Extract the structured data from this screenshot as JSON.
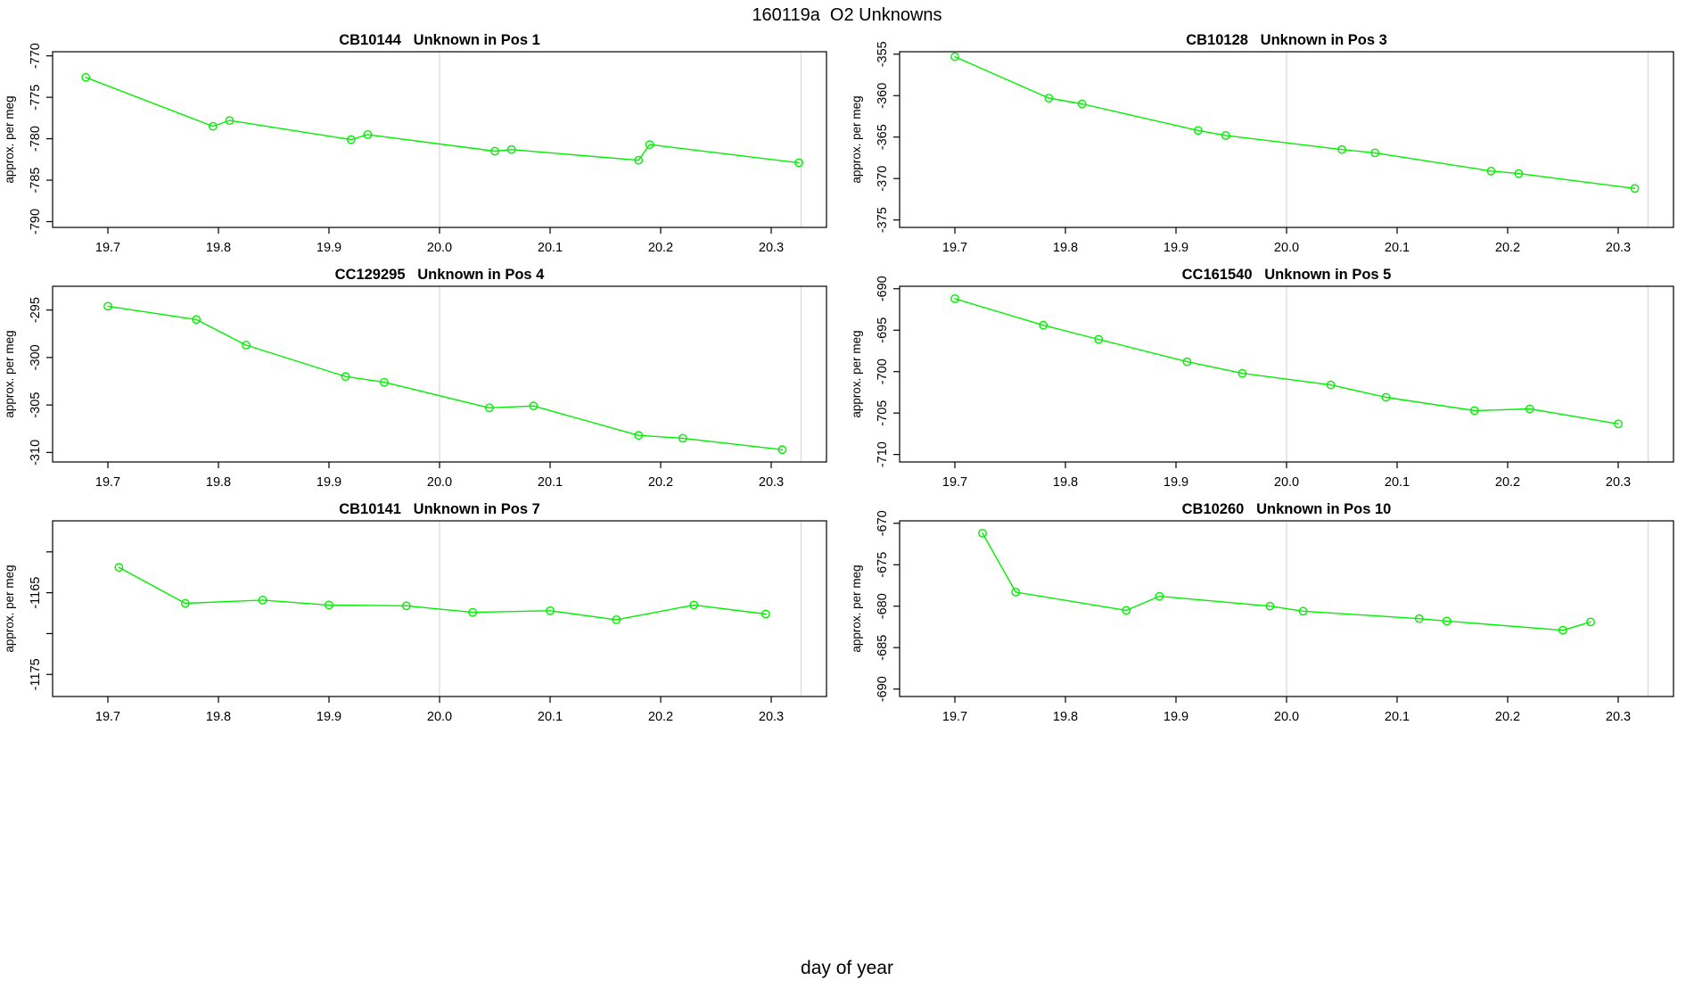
{
  "figure": {
    "title": "160119a  O2 Unknowns",
    "bottom_axis_label": "day of year"
  },
  "colors": {
    "series": "#00f000",
    "gridline": "#d8d8d8",
    "axis": "#000000",
    "background": "#ffffff"
  },
  "chart_data": [
    {
      "id": "cb10144-pos1",
      "type": "line",
      "title": "CB10144   Unknown in Pos 1",
      "ylabel": "approx. per meg",
      "xlabel": "day of year",
      "x": [
        19.68,
        19.795,
        19.81,
        19.92,
        19.935,
        20.05,
        20.065,
        20.18,
        20.19,
        20.325
      ],
      "y": [
        -772.6,
        -778.5,
        -777.8,
        -780.1,
        -779.5,
        -781.5,
        -781.3,
        -782.6,
        -780.7,
        -782.9
      ],
      "xlim": [
        19.65,
        20.35
      ],
      "ylim": [
        -790.7,
        -769.5
      ],
      "xticks": [
        19.7,
        19.8,
        19.9,
        20.0,
        20.1,
        20.2,
        20.3
      ],
      "xtick_labels": [
        "19.7",
        "19.8",
        "19.9",
        "20.0",
        "20.1",
        "20.2",
        "20.3"
      ],
      "yticks": [
        -790,
        -785,
        -780,
        -775,
        -770
      ],
      "ytick_labels": [
        "-790",
        "-785",
        "-780",
        "-775",
        "-770"
      ],
      "vlines": [
        20.0,
        20.327
      ],
      "grid_row": 0,
      "grid_col": 0
    },
    {
      "id": "cb10128-pos3",
      "type": "line",
      "title": "CB10128   Unknown in Pos 3",
      "ylabel": "approx. per meg",
      "xlabel": "day of year",
      "x": [
        19.7,
        19.785,
        19.815,
        19.92,
        19.945,
        20.05,
        20.08,
        20.185,
        20.21,
        20.315
      ],
      "y": [
        -355.3,
        -360.3,
        -361.0,
        -364.2,
        -364.8,
        -366.5,
        -366.9,
        -369.1,
        -369.4,
        -371.2
      ],
      "xlim": [
        19.65,
        20.35
      ],
      "ylim": [
        -375.9,
        -354.7
      ],
      "xticks": [
        19.7,
        19.8,
        19.9,
        20.0,
        20.1,
        20.2,
        20.3
      ],
      "xtick_labels": [
        "19.7",
        "19.8",
        "19.9",
        "20.0",
        "20.1",
        "20.2",
        "20.3"
      ],
      "yticks": [
        -375,
        -370,
        -365,
        -360,
        -355
      ],
      "ytick_labels": [
        "-375",
        "-370",
        "-365",
        "-360",
        "-355"
      ],
      "vlines": [
        20.0,
        20.327
      ],
      "grid_row": 0,
      "grid_col": 1
    },
    {
      "id": "cc129295-pos4",
      "type": "line",
      "title": "CC129295   Unknown in Pos 4",
      "ylabel": "approx. per meg",
      "xlabel": "day of year",
      "x": [
        19.7,
        19.78,
        19.825,
        19.915,
        19.95,
        20.045,
        20.085,
        20.18,
        20.22,
        20.31
      ],
      "y": [
        -294.6,
        -296.0,
        -298.7,
        -302.0,
        -302.6,
        -305.3,
        -305.1,
        -308.2,
        -308.5,
        -309.7
      ],
      "xlim": [
        19.65,
        20.35
      ],
      "ylim": [
        -311.0,
        -292.5
      ],
      "xticks": [
        19.7,
        19.8,
        19.9,
        20.0,
        20.1,
        20.2,
        20.3
      ],
      "xtick_labels": [
        "19.7",
        "19.8",
        "19.9",
        "20.0",
        "20.1",
        "20.2",
        "20.3"
      ],
      "yticks": [
        -310,
        -305,
        -300,
        -295
      ],
      "ytick_labels": [
        "-310",
        "-305",
        "-300",
        "-295"
      ],
      "vlines": [
        20.0,
        20.327
      ],
      "grid_row": 1,
      "grid_col": 0
    },
    {
      "id": "cc161540-pos5",
      "type": "line",
      "title": "CC161540   Unknown in Pos 5",
      "ylabel": "approx. per meg",
      "xlabel": "day of year",
      "x": [
        19.7,
        19.78,
        19.83,
        19.91,
        19.96,
        20.04,
        20.09,
        20.17,
        20.22,
        20.3
      ],
      "y": [
        -691.2,
        -694.4,
        -696.1,
        -698.8,
        -700.2,
        -701.6,
        -703.1,
        -704.7,
        -704.5,
        -706.3
      ],
      "xlim": [
        19.65,
        20.35
      ],
      "ylim": [
        -710.9,
        -689.7
      ],
      "xticks": [
        19.7,
        19.8,
        19.9,
        20.0,
        20.1,
        20.2,
        20.3
      ],
      "xtick_labels": [
        "19.7",
        "19.8",
        "19.9",
        "20.0",
        "20.1",
        "20.2",
        "20.3"
      ],
      "yticks": [
        -710,
        -705,
        -700,
        -695,
        -690
      ],
      "ytick_labels": [
        "-710",
        "-705",
        "-700",
        "-695",
        "-690"
      ],
      "vlines": [
        20.0,
        20.327
      ],
      "grid_row": 1,
      "grid_col": 1
    },
    {
      "id": "cb10141-pos7",
      "type": "line",
      "title": "CB10141   Unknown in Pos 7",
      "ylabel": "approx. per meg",
      "xlabel": "day of year",
      "x": [
        19.71,
        19.77,
        19.84,
        19.9,
        19.97,
        20.03,
        20.1,
        20.16,
        20.23,
        20.295
      ],
      "y": [
        -1161.9,
        -1166.3,
        -1165.9,
        -1166.5,
        -1166.6,
        -1167.4,
        -1167.2,
        -1168.3,
        -1166.5,
        -1167.6
      ],
      "xlim": [
        19.65,
        20.35
      ],
      "ylim": [
        -1177.7,
        -1156.2
      ],
      "xticks": [
        19.7,
        19.8,
        19.9,
        20.0,
        20.1,
        20.2,
        20.3
      ],
      "xtick_labels": [
        "19.7",
        "19.8",
        "19.9",
        "20.0",
        "20.1",
        "20.2",
        "20.3"
      ],
      "yticks": [
        -1160,
        -1165,
        -1170,
        -1175
      ],
      "ytick_labels": [
        "",
        "-1165",
        "",
        "-1175"
      ],
      "vlines": [
        20.0,
        20.327
      ],
      "grid_row": 2,
      "grid_col": 0
    },
    {
      "id": "cb10260-pos10",
      "type": "line",
      "title": "CB10260   Unknown in Pos 10",
      "ylabel": "approx. per meg",
      "xlabel": "day of year",
      "x": [
        19.725,
        19.755,
        19.855,
        19.885,
        19.985,
        20.015,
        20.12,
        20.145,
        20.25,
        20.275
      ],
      "y": [
        -671.2,
        -678.3,
        -680.5,
        -678.8,
        -680.0,
        -680.6,
        -681.5,
        -681.8,
        -682.9,
        -681.9
      ],
      "xlim": [
        19.65,
        20.35
      ],
      "ylim": [
        -690.9,
        -669.7
      ],
      "xticks": [
        19.7,
        19.8,
        19.9,
        20.0,
        20.1,
        20.2,
        20.3
      ],
      "xtick_labels": [
        "19.7",
        "19.8",
        "19.9",
        "20.0",
        "20.1",
        "20.2",
        "20.3"
      ],
      "yticks": [
        -690,
        -685,
        -680,
        -675,
        -670
      ],
      "ytick_labels": [
        "-690",
        "-685",
        "-680",
        "-675",
        "-670"
      ],
      "vlines": [
        20.0,
        20.327
      ],
      "grid_row": 2,
      "grid_col": 1
    }
  ]
}
